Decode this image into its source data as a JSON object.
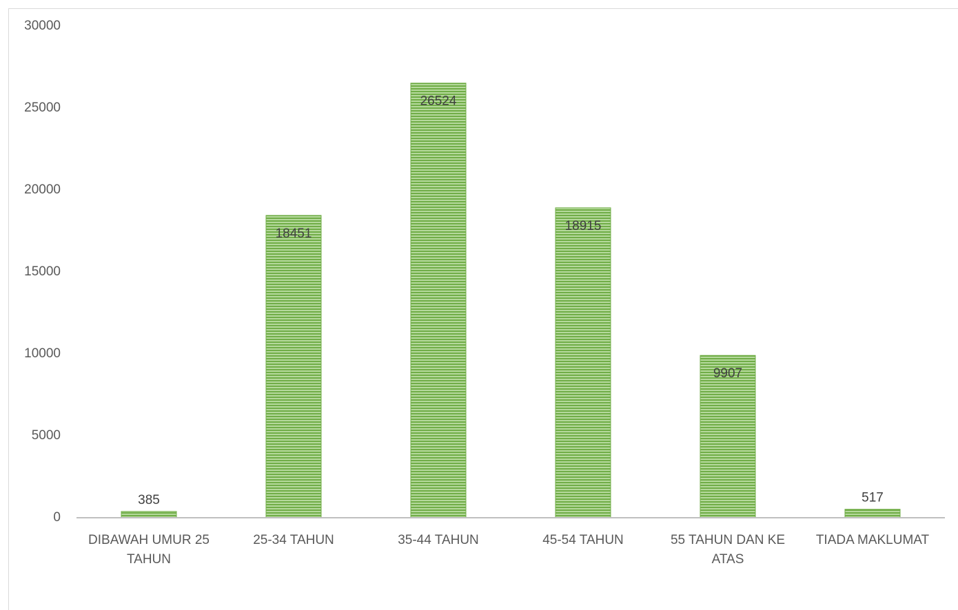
{
  "chart_data": {
    "type": "bar",
    "categories": [
      "DIBAWAH UMUR 25 TAHUN",
      "25-34 TAHUN",
      "35-44 TAHUN",
      "45-54 TAHUN",
      "55 TAHUN DAN KE ATAS",
      "TIADA MAKLUMAT"
    ],
    "values": [
      385,
      18451,
      26524,
      18915,
      9907,
      517
    ],
    "color": "#70ad47",
    "ylim": [
      0,
      30000
    ],
    "yticks": [
      0,
      5000,
      10000,
      15000,
      20000,
      25000,
      30000
    ],
    "grid": false
  }
}
